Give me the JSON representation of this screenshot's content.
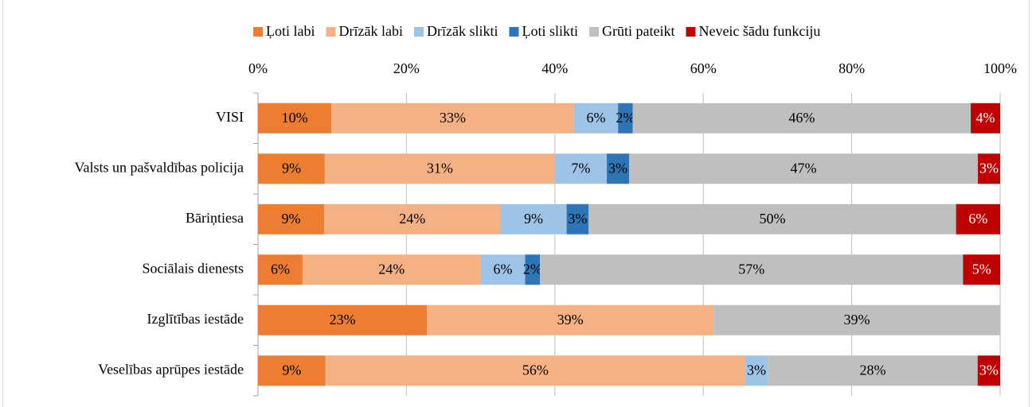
{
  "chart_data": {
    "type": "bar",
    "orientation": "horizontal",
    "stacking": "percent",
    "categories": [
      "VISI",
      "Valsts un pašvaldības policija",
      "Bāriņtiesa",
      "Sociālais dienests",
      "Izglītības iestāde",
      "Veselības aprūpes iestāde"
    ],
    "series": [
      {
        "name": "Ļoti labi",
        "color": "#ed7d31",
        "values": [
          10,
          9,
          9,
          6,
          23,
          9
        ],
        "value_labels": [
          "10%",
          "9%",
          "9%",
          "6%",
          "23%",
          "9%"
        ]
      },
      {
        "name": "Drīzāk labi",
        "color": "#f4b183",
        "values": [
          33,
          31,
          24,
          24,
          39,
          56
        ],
        "value_labels": [
          "33%",
          "31%",
          "24%",
          "24%",
          "39%",
          "56%"
        ]
      },
      {
        "name": "Drīzāk slikti",
        "color": "#9dc3e6",
        "values": [
          6,
          7,
          9,
          6,
          null,
          3
        ],
        "value_labels": [
          "6%",
          "7%",
          "9%",
          "6%",
          null,
          "3%"
        ]
      },
      {
        "name": "Ļoti slikti",
        "color": "#2e75b6",
        "values": [
          2,
          3,
          3,
          2,
          null,
          null
        ],
        "value_labels": [
          "2%",
          "3%",
          "3%",
          "2%",
          null,
          null
        ]
      },
      {
        "name": "Grūti pateikt",
        "color": "#bfbfbf",
        "values": [
          46,
          47,
          50,
          57,
          39,
          28
        ],
        "value_labels": [
          "46%",
          "47%",
          "50%",
          "57%",
          "39%",
          "28%"
        ]
      },
      {
        "name": "Neveic šādu funkciju",
        "color": "#c00000",
        "values": [
          4,
          3,
          6,
          5,
          null,
          3
        ],
        "value_labels": [
          "4%",
          "3%",
          "6%",
          "5%",
          null,
          "3%"
        ]
      }
    ],
    "xlim": [
      0,
      100
    ],
    "xticks": [
      {
        "value": 0,
        "label": "0%"
      },
      {
        "value": 20,
        "label": "20%"
      },
      {
        "value": 40,
        "label": "40%"
      },
      {
        "value": 60,
        "label": "60%"
      },
      {
        "value": 80,
        "label": "80%"
      },
      {
        "value": 100,
        "label": "100%"
      }
    ],
    "grid": true,
    "legend": "top"
  }
}
